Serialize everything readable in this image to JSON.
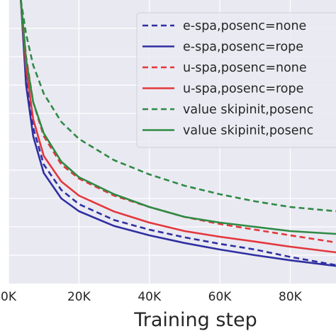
{
  "chart_data": {
    "type": "line",
    "xlabel": "Training step",
    "ylabel": "",
    "title": "",
    "xlim": [
      0,
      93000
    ],
    "ylim": [
      0,
      1
    ],
    "x_ticks": [
      0,
      20000,
      40000,
      60000,
      80000
    ],
    "x_tick_labels": [
      "0K",
      "20K",
      "40K",
      "60K",
      "80K"
    ],
    "grid": true,
    "legend_position": "top-right",
    "series": [
      {
        "name": "e-spa,posenc=none",
        "color": "#2f2fa1",
        "dash": true,
        "x": [
          3500,
          5000,
          7000,
          10000,
          15000,
          20000,
          30000,
          40000,
          50000,
          60000,
          70000,
          80000,
          93000
        ],
        "y": [
          1.0,
          0.72,
          0.55,
          0.42,
          0.33,
          0.28,
          0.224,
          0.19,
          0.163,
          0.14,
          0.12,
          0.094,
          0.065
        ]
      },
      {
        "name": "e-spa,posenc=rope",
        "color": "#2f2fa1",
        "dash": false,
        "x": [
          3500,
          5000,
          7000,
          10000,
          15000,
          20000,
          30000,
          40000,
          50000,
          60000,
          70000,
          80000,
          93000
        ],
        "y": [
          1.0,
          0.7,
          0.52,
          0.39,
          0.3,
          0.255,
          0.203,
          0.17,
          0.143,
          0.12,
          0.1,
          0.082,
          0.062
        ]
      },
      {
        "name": "u-spa,posenc=none",
        "color": "#e3373b",
        "dash": true,
        "x": [
          3500,
          5000,
          7000,
          10000,
          15000,
          20000,
          30000,
          40000,
          50000,
          60000,
          70000,
          80000,
          93000
        ],
        "y": [
          1.0,
          0.8,
          0.64,
          0.52,
          0.42,
          0.37,
          0.31,
          0.27,
          0.235,
          0.21,
          0.19,
          0.17,
          0.145
        ]
      },
      {
        "name": "u-spa,posenc=rope",
        "color": "#e3373b",
        "dash": false,
        "x": [
          3500,
          5000,
          7000,
          10000,
          15000,
          20000,
          30000,
          40000,
          50000,
          60000,
          70000,
          80000,
          93000
        ],
        "y": [
          1.0,
          0.76,
          0.58,
          0.45,
          0.36,
          0.31,
          0.254,
          0.215,
          0.185,
          0.165,
          0.148,
          0.13,
          0.11
        ]
      },
      {
        "name": "value skipinit,posenc",
        "color": "#2e8a43",
        "dash": true,
        "x": [
          3500,
          5000,
          7000,
          10000,
          15000,
          20000,
          30000,
          40000,
          50000,
          60000,
          70000,
          80000,
          93000
        ],
        "y": [
          1.0,
          0.88,
          0.77,
          0.67,
          0.57,
          0.51,
          0.435,
          0.385,
          0.345,
          0.315,
          0.29,
          0.27,
          0.255
        ]
      },
      {
        "name": "value skipinit,posenc",
        "color": "#2e8a43",
        "dash": false,
        "x": [
          3500,
          5000,
          7000,
          10000,
          15000,
          20000,
          30000,
          40000,
          50000,
          60000,
          70000,
          80000,
          93000
        ],
        "y": [
          1.0,
          0.79,
          0.64,
          0.53,
          0.43,
          0.375,
          0.315,
          0.27,
          0.235,
          0.215,
          0.2,
          0.185,
          0.175
        ]
      }
    ]
  },
  "style": {
    "plot_background": "#e9e9f2",
    "grid_color": "#ffffff",
    "text_color": "#262626"
  }
}
